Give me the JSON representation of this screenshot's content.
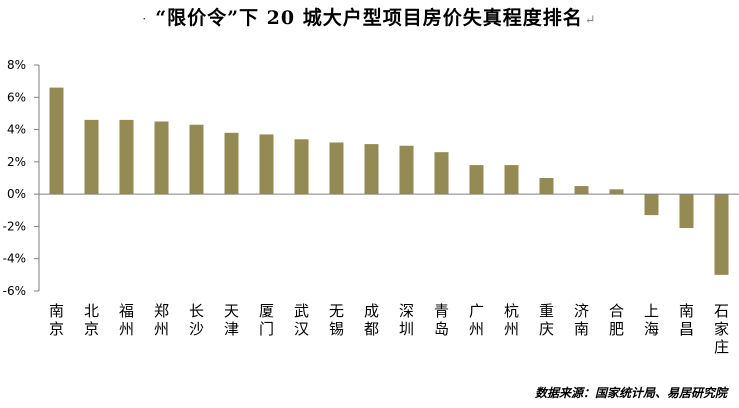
{
  "title": "“限价令”下 20 城大户型项目房价失真程度排名",
  "title_bullet": "·",
  "title_return_mark": "↵",
  "source": "数据来源：国家统计局、易居研究院",
  "colors": {
    "bar": "#948a54",
    "axis": "#7f7f7f",
    "text": "#000000"
  },
  "chart_data": {
    "type": "bar",
    "title": "“限价令”下 20 城大户型项目房价失真程度排名",
    "xlabel": "",
    "ylabel": "",
    "ylim": [
      -6,
      8
    ],
    "y_ticks": [
      8,
      6,
      4,
      2,
      0,
      -2,
      -4,
      -6
    ],
    "y_tick_labels": [
      "8%",
      "6%",
      "4%",
      "2%",
      "0%",
      "-2%",
      "-4%",
      "-6%"
    ],
    "grid": false,
    "legend": "none",
    "categories": [
      "南京",
      "北京",
      "福州",
      "郑州",
      "长沙",
      "天津",
      "厦门",
      "武汉",
      "无锡",
      "成都",
      "深圳",
      "青岛",
      "广州",
      "杭州",
      "重庆",
      "济南",
      "合肥",
      "上海",
      "南昌",
      "石家庄"
    ],
    "values": [
      6.6,
      4.6,
      4.6,
      4.5,
      4.3,
      3.8,
      3.7,
      3.4,
      3.2,
      3.1,
      3.0,
      2.6,
      1.8,
      1.8,
      1.0,
      0.5,
      0.3,
      -1.3,
      -2.1,
      -5.0
    ]
  }
}
